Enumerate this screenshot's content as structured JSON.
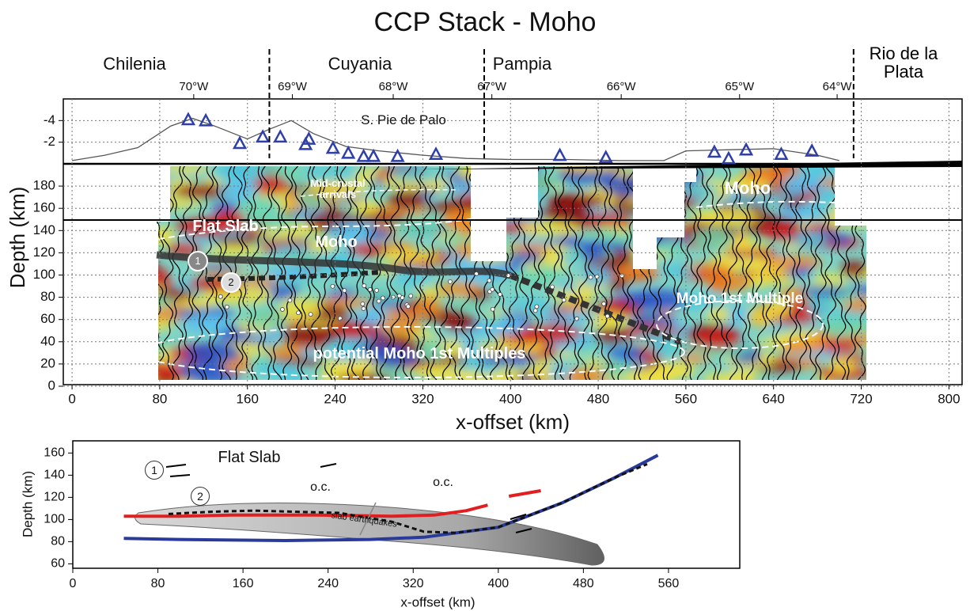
{
  "chart_data": [
    {
      "type": "section",
      "title": "CCP Stack - Moho",
      "xlabel": "x-offset (km)",
      "ylabel": "Depth (km)",
      "xlim": [
        -8,
        812
      ],
      "xticks": [
        0,
        80,
        160,
        240,
        320,
        400,
        480,
        560,
        640,
        720,
        800
      ],
      "ylim": [
        0,
        200
      ],
      "yticks": [
        0,
        20,
        40,
        60,
        80,
        100,
        120,
        140,
        160,
        180
      ],
      "y2lim": [
        -6,
        0
      ],
      "y2ticks": [
        -4,
        -2
      ],
      "grid": true,
      "regions": [
        "Chilenia",
        "Cuyania",
        "Pampia",
        "Rio de la Plata"
      ],
      "boundaries": [
        180,
        376,
        713
      ],
      "lon_ticks": [
        {
          "value": 111,
          "label": "70°W"
        },
        {
          "value": 201,
          "label": "69°W"
        },
        {
          "value": 293,
          "label": "68°W"
        },
        {
          "value": 383,
          "label": "67°W"
        },
        {
          "value": 501,
          "label": "66°W"
        },
        {
          "value": 609,
          "label": "65°W"
        },
        {
          "value": 698,
          "label": "64°W"
        }
      ],
      "series": [
        {
          "style": "line",
          "axis": "y2",
          "color": "#555555",
          "x": [
            0,
            30,
            60,
            90,
            110,
            130,
            160,
            180,
            200,
            220,
            250,
            280,
            320,
            360,
            400,
            450,
            500,
            540,
            560,
            600,
            640,
            680,
            700
          ],
          "values": [
            -0.3,
            -0.8,
            -1.5,
            -3.5,
            -4.2,
            -3.5,
            -2.3,
            -3.2,
            -4.0,
            -2.8,
            -1.6,
            -1.2,
            -0.8,
            -0.5,
            -0.4,
            -0.4,
            -0.3,
            -0.3,
            -1.2,
            -1.3,
            -1.4,
            -0.8,
            -0.3
          ]
        },
        {
          "style": "triangle",
          "axis": "y2",
          "color": "#2f3fa8",
          "x": [
            106,
            122,
            153,
            174,
            190,
            213,
            216,
            238,
            252,
            266,
            275,
            297,
            332,
            445,
            487,
            586,
            599,
            615,
            647,
            675
          ],
          "values": [
            -4.1,
            -4.0,
            -1.9,
            -2.5,
            -2.5,
            -1.8,
            -2.3,
            -1.45,
            -1.0,
            -0.7,
            -0.7,
            -0.7,
            -0.9,
            -0.8,
            -0.6,
            -1.1,
            -0.5,
            -1.3,
            -0.9,
            -1.2
          ]
        }
      ],
      "annotations": [
        "S. Pie de Palo",
        "Mid-crustal arrivals",
        "Moho",
        "Flat Slab",
        "Moho",
        "Moho 1st Multiple",
        "potential Moho 1st Multiples",
        "1",
        "2"
      ]
    },
    {
      "type": "line",
      "xlabel": "x-offset (km)",
      "ylabel": "Depth (km)",
      "xlim": [
        0,
        627
      ],
      "xticks": [
        0,
        80,
        160,
        240,
        320,
        400,
        480,
        560
      ],
      "ylim": [
        56,
        171
      ],
      "yticks": [
        60,
        80,
        100,
        120,
        140,
        160
      ],
      "series": [
        {
          "color": "#2a3a9a",
          "dashed": false,
          "x": [
            48,
            100,
            200,
            280,
            330,
            400,
            460,
            510,
            550
          ],
          "values": [
            83,
            82,
            81,
            82,
            84,
            93,
            115,
            138,
            158
          ]
        },
        {
          "color": "#e02020",
          "dashed": false,
          "x": [
            48,
            100,
            150,
            230,
            300,
            340,
            370,
            390,
            null,
            410,
            440
          ],
          "values": [
            103,
            103,
            104,
            104,
            103,
            104,
            108,
            113,
            null,
            121,
            126
          ]
        },
        {
          "color": "#111111",
          "dashed": true,
          "x": [
            90,
            130,
            170,
            250,
            300,
            330,
            360,
            400,
            460,
            510,
            540
          ],
          "values": [
            105,
            107,
            108,
            106,
            98,
            89,
            88,
            93,
            115,
            138,
            150
          ]
        }
      ],
      "annotations": [
        "Flat Slab",
        "o.c.",
        "o.c.",
        "slab earthquakes",
        "1",
        "2"
      ]
    }
  ]
}
